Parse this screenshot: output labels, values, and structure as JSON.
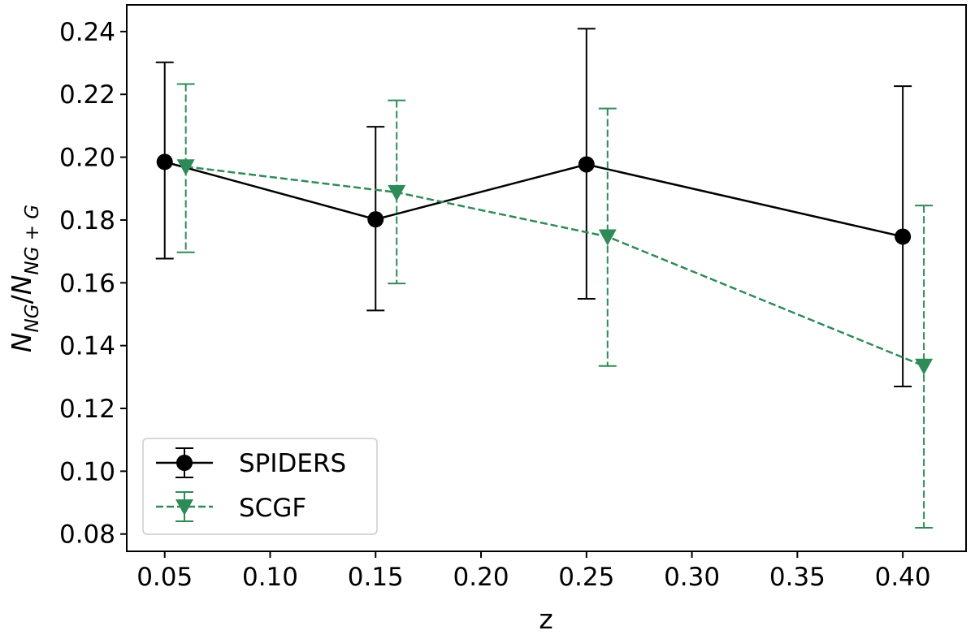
{
  "chart_data": {
    "type": "line",
    "xlabel": "z",
    "ylabel": {
      "base1": "N",
      "sub1": "NG",
      "slash": "/",
      "base2": "N",
      "sub2": "NG + G"
    },
    "xlim": [
      0.032,
      0.43
    ],
    "ylim": [
      0.0745,
      0.2485
    ],
    "xticks": [
      0.05,
      0.1,
      0.15,
      0.2,
      0.25,
      0.3,
      0.35,
      0.4
    ],
    "xtick_labels": [
      "0.05",
      "0.10",
      "0.15",
      "0.20",
      "0.25",
      "0.30",
      "0.35",
      "0.40"
    ],
    "yticks": [
      0.08,
      0.1,
      0.12,
      0.14,
      0.16,
      0.18,
      0.2,
      0.22,
      0.24
    ],
    "ytick_labels": [
      "0.08",
      "0.10",
      "0.12",
      "0.14",
      "0.16",
      "0.18",
      "0.20",
      "0.22",
      "0.24"
    ],
    "grid": false,
    "legend_position": "lower-left",
    "series": [
      {
        "name": "SPIDERS",
        "color": "#000000",
        "marker": "circle",
        "linestyle": "solid",
        "x": [
          0.05,
          0.15,
          0.25,
          0.4
        ],
        "y": [
          0.1985,
          0.1802,
          0.1977,
          0.1747
        ],
        "err_low": [
          0.1677,
          0.1512,
          0.1549,
          0.127
        ],
        "err_high": [
          0.2302,
          0.2097,
          0.2409,
          0.2226
        ]
      },
      {
        "name": "SCGF",
        "color": "#2e8b57",
        "marker": "triangle-down",
        "linestyle": "dashed",
        "x": [
          0.06,
          0.16,
          0.26,
          0.41
        ],
        "y": [
          0.197,
          0.1888,
          0.1747,
          0.1335
        ],
        "err_low": [
          0.1697,
          0.1598,
          0.1335,
          0.082
        ],
        "err_high": [
          0.2233,
          0.2181,
          0.2155,
          0.1846
        ]
      }
    ]
  }
}
